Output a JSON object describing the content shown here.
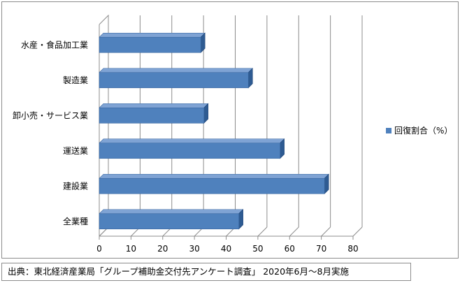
{
  "chart_data": {
    "type": "bar",
    "orientation": "horizontal",
    "style": "3d",
    "categories": [
      "水産・食品加工業",
      "製造業",
      "卸小売・サービス業",
      "運送業",
      "建設業",
      "全業種"
    ],
    "series": [
      {
        "name": "回復割合（%）",
        "values": [
          32,
          47,
          33,
          57,
          71,
          44
        ],
        "color": "#4f81bd"
      }
    ],
    "xlim": [
      0,
      80
    ],
    "xticks": [
      "0",
      "10",
      "20",
      "30",
      "40",
      "50",
      "60",
      "70",
      "80"
    ],
    "grid": true,
    "legend": "right"
  },
  "source": "出典：東北経済産業局「グループ補助金交付先アンケート調査」 2020年6月～8月実施"
}
